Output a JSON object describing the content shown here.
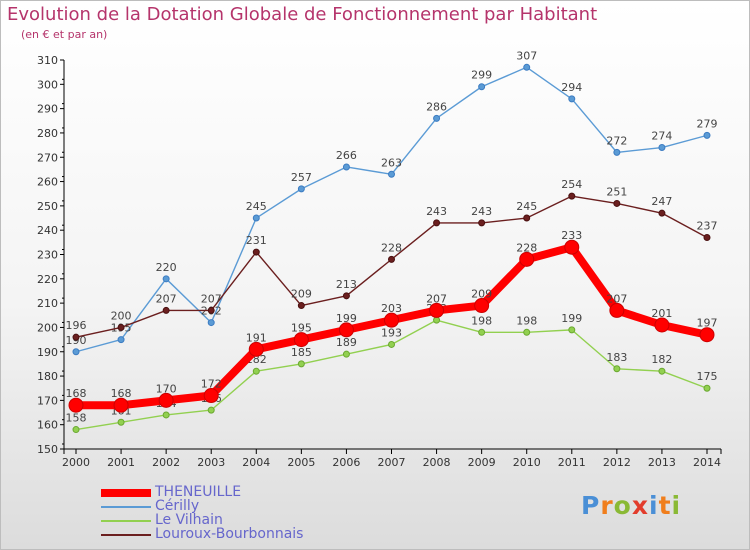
{
  "title": "Evolution de la Dotation Globale de Fonctionnement par Habitant",
  "subtitle": "(en € et par an)",
  "logo_text": "Proxiti",
  "chart_data": {
    "type": "line",
    "title": "Evolution de la Dotation Globale de Fonctionnement par Habitant",
    "subtitle": "(en € et par an)",
    "x": [
      "2000",
      "2001",
      "2002",
      "2003",
      "2004",
      "2005",
      "2006",
      "2007",
      "2008",
      "2009",
      "2010",
      "2011",
      "2012",
      "2013",
      "2014"
    ],
    "ylim": [
      150,
      310
    ],
    "yticks": [
      150,
      160,
      170,
      180,
      190,
      200,
      210,
      220,
      230,
      240,
      250,
      260,
      270,
      280,
      290,
      300,
      310
    ],
    "grid": false,
    "legend": "bottom-left",
    "series": [
      {
        "name": "Cérilly",
        "color": "#5b9bd5",
        "values": [
          190,
          195,
          220,
          202,
          245,
          257,
          266,
          263,
          286,
          299,
          307,
          294,
          272,
          274,
          279
        ]
      },
      {
        "name": "Louroux-Bourbonnais",
        "color": "#6b1f1f",
        "values": [
          196,
          200,
          207,
          207,
          231,
          209,
          213,
          228,
          243,
          243,
          245,
          254,
          251,
          247,
          237
        ]
      },
      {
        "name": "Le Vilhain",
        "color": "#92d050",
        "values": [
          158,
          161,
          164,
          166,
          182,
          185,
          189,
          193,
          203,
          198,
          198,
          199,
          183,
          182,
          175
        ]
      },
      {
        "name": "THENEUILLE",
        "color": "#ff0000",
        "values": [
          168,
          168,
          170,
          172,
          191,
          195,
          199,
          203,
          207,
          209,
          228,
          233,
          207,
          201,
          197
        ]
      }
    ],
    "legend_order": [
      "THENEUILLE",
      "Cérilly",
      "Le Vilhain",
      "Louroux-Bourbonnais"
    ]
  }
}
